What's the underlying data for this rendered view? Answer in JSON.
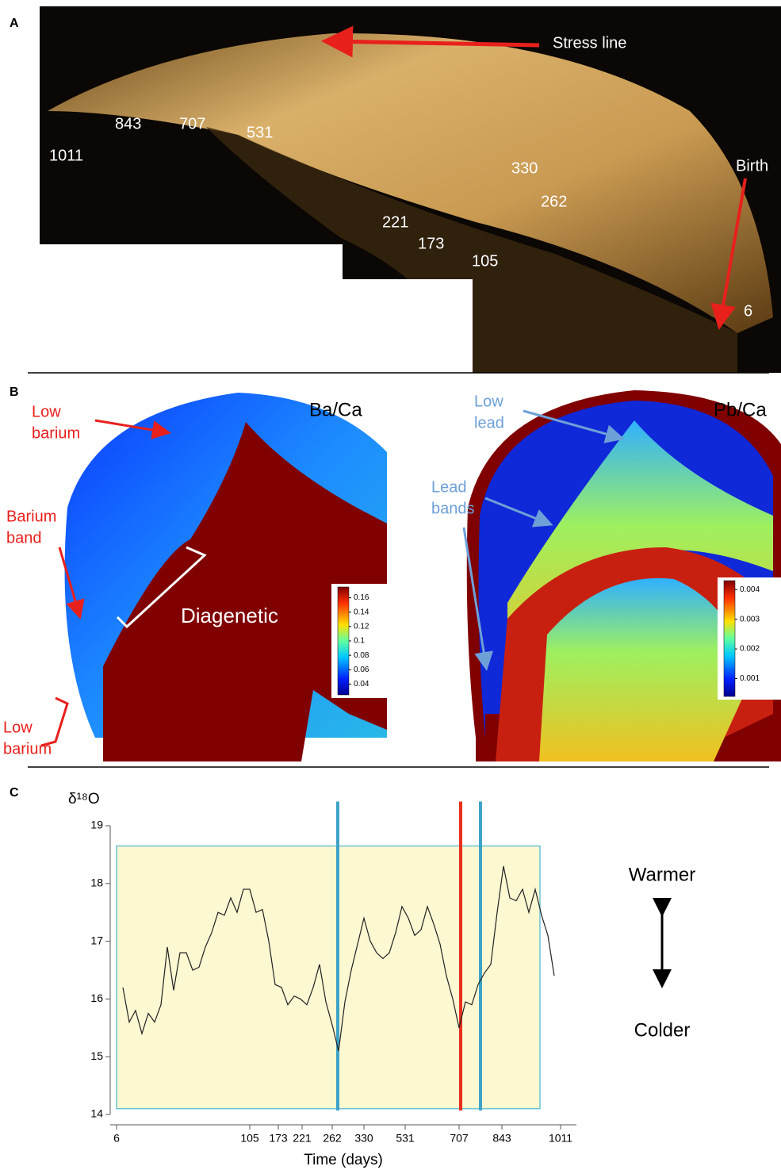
{
  "panel_a": {
    "label": "A",
    "stress_line": "Stress line",
    "birth": "Birth",
    "day_labels": [
      "1011",
      "843",
      "707",
      "531",
      "330",
      "262",
      "221",
      "173",
      "105",
      "6"
    ]
  },
  "panel_b": {
    "label": "B",
    "ba_ca": {
      "title": "Ba/Ca",
      "colorbar": {
        "lim": [
          0.025,
          0.175
        ],
        "ticks": [
          0.16,
          0.14,
          0.12,
          0.1,
          0.08,
          0.06,
          0.04
        ]
      },
      "annotations": [
        [
          "Low",
          "barium"
        ],
        [
          "Barium",
          "band"
        ],
        [
          "Diagenetic"
        ],
        [
          "Low",
          "barium"
        ]
      ]
    },
    "pb_ca": {
      "title": "Pb/Ca",
      "colorbar": {
        "lim": [
          0.0004,
          0.0043
        ],
        "ticks": [
          0.004,
          0.003,
          0.002,
          0.001
        ]
      },
      "annotations": [
        [
          "Low",
          "lead"
        ],
        [
          "Lead",
          "bands"
        ]
      ]
    }
  },
  "panel_c": {
    "label": "C",
    "warmer": "Warmer",
    "colder": "Colder"
  },
  "chart_data": {
    "type": "line",
    "y_label": "δ¹⁸O",
    "x_label": "Time (days)",
    "xlim": [
      -2,
      145
    ],
    "ylim": [
      14,
      19.2
    ],
    "xticks": [
      {
        "value": 0,
        "label": "6"
      },
      {
        "value": 42,
        "label": "105"
      },
      {
        "value": 51,
        "label": "173"
      },
      {
        "value": 58.5,
        "label": "221"
      },
      {
        "value": 68,
        "label": "262"
      },
      {
        "value": 78,
        "label": "330"
      },
      {
        "value": 91,
        "label": "531"
      },
      {
        "value": 108,
        "label": "707"
      },
      {
        "value": 121.5,
        "label": "843"
      },
      {
        "value": 140,
        "label": "1011"
      }
    ],
    "yticks": [
      14,
      15,
      16,
      17,
      18,
      19
    ],
    "shaded_region": {
      "x": [
        0,
        133.5
      ],
      "y": [
        14.1,
        18.65
      ],
      "color": "#fbf8d2",
      "edge": "#6cc4d4"
    },
    "vlines": [
      {
        "x": 69.75,
        "color": "#3fa3c8"
      },
      {
        "x": 108.5,
        "color": "#e8301c"
      },
      {
        "x": 114.75,
        "color": "#3fa3c8"
      }
    ],
    "series": [
      {
        "color": "#222222",
        "x": [
          2,
          4,
          6,
          8,
          10,
          12,
          14,
          16,
          18,
          20,
          22,
          24,
          26,
          28,
          30,
          32,
          34,
          36,
          38,
          40,
          42,
          44,
          46,
          48,
          50,
          52,
          54,
          56,
          58,
          60,
          62,
          64,
          66,
          68,
          70,
          72,
          74,
          76,
          78,
          80,
          82,
          84,
          86,
          88,
          90,
          92,
          94,
          96,
          98,
          100,
          102,
          104,
          106,
          108,
          110,
          112,
          114,
          116,
          118,
          120,
          122,
          124,
          126,
          128,
          130,
          132,
          134,
          136,
          138
        ],
        "values": [
          16.2,
          15.6,
          15.8,
          15.4,
          15.75,
          15.6,
          15.9,
          16.9,
          16.15,
          16.8,
          16.8,
          16.5,
          16.55,
          16.9,
          17.15,
          17.5,
          17.45,
          17.75,
          17.5,
          17.9,
          17.9,
          17.5,
          17.55,
          17.0,
          16.25,
          16.2,
          15.9,
          16.05,
          16.0,
          15.9,
          16.2,
          16.6,
          15.95,
          15.55,
          15.1,
          15.95,
          16.5,
          16.95,
          17.4,
          17.0,
          16.8,
          16.7,
          16.8,
          17.15,
          17.6,
          17.4,
          17.1,
          17.2,
          17.6,
          17.3,
          16.95,
          16.4,
          16.0,
          15.5,
          15.95,
          15.9,
          16.25,
          16.45,
          16.6,
          17.5,
          18.3,
          17.75,
          17.7,
          17.9,
          17.5,
          17.9,
          17.45,
          17.1,
          16.4
        ]
      }
    ]
  }
}
